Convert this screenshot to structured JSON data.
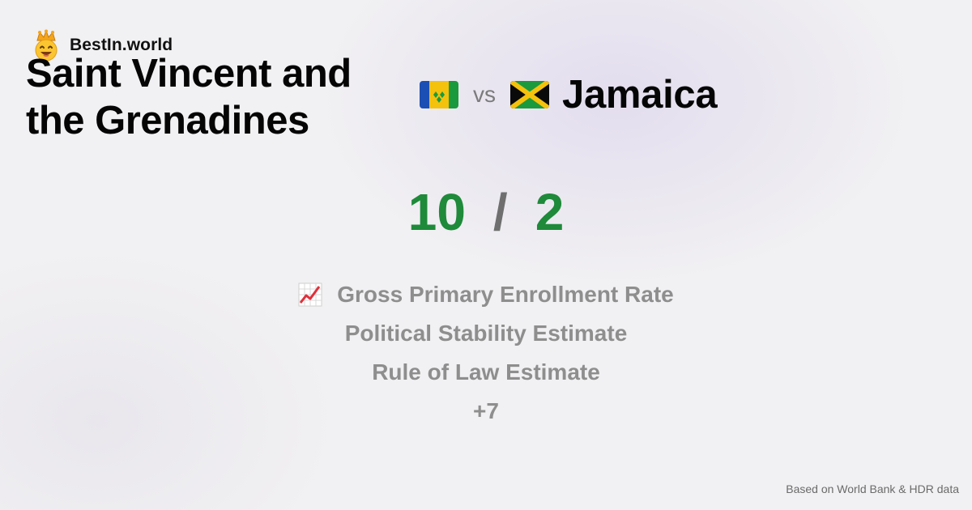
{
  "brand": {
    "name": "BestIn.world",
    "icon": "crowned-smiley-icon"
  },
  "comparison": {
    "left": {
      "name": "Saint Vincent and the Grenadines",
      "flag": "saint-vincent-flag-icon"
    },
    "vs_label": "vs",
    "right": {
      "name": "Jamaica",
      "flag": "jamaica-flag-icon"
    }
  },
  "score": {
    "left": "10",
    "separator": "/",
    "right": "2"
  },
  "metrics": [
    {
      "label": "Gross Primary Enrollment Rate",
      "icon": "chart-increasing-icon"
    },
    {
      "label": "Political Stability Estimate"
    },
    {
      "label": "Rule of Law Estimate"
    },
    {
      "label": "+7"
    }
  ],
  "footer": "Based on World Bank & HDR data",
  "colors": {
    "score": "#1e8a3a",
    "metric_text": "#8e8e8e",
    "background": "#f1f0f2"
  }
}
